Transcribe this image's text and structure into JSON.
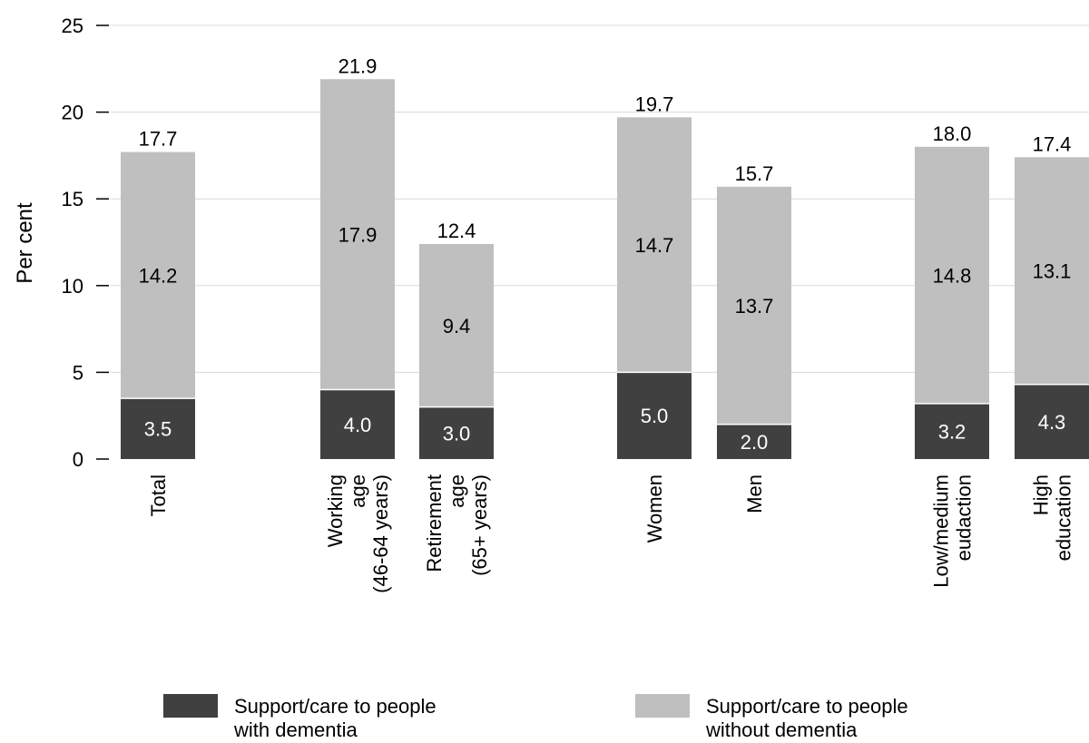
{
  "chart_data": {
    "type": "bar",
    "stacked": true,
    "ylabel": "Per cent",
    "ylim": [
      0,
      25
    ],
    "yticks": [
      0,
      5,
      10,
      15,
      20,
      25
    ],
    "grid": true,
    "legend_position": "bottom",
    "categories": [
      [
        "Total"
      ],
      [
        "Working",
        "age",
        "(46-64 years)"
      ],
      [
        "Retirement",
        "age",
        "(65+ years)"
      ],
      [
        "Women"
      ],
      [
        "Men"
      ],
      [
        "Low/medium",
        "eudaction"
      ],
      [
        "High",
        "education"
      ]
    ],
    "series": [
      {
        "name": "Support/care to people with dementia",
        "legend_lines": [
          "Support/care to people",
          "with dementia"
        ],
        "color": "#404040",
        "values": [
          3.5,
          4.0,
          3.0,
          5.0,
          2.0,
          3.2,
          4.3
        ]
      },
      {
        "name": "Support/care to people without dementia",
        "legend_lines": [
          "Support/care to people",
          "without dementia"
        ],
        "color": "#bfbfbf",
        "values": [
          14.2,
          17.9,
          9.4,
          14.7,
          13.7,
          14.8,
          13.1
        ]
      }
    ],
    "value_labels": [
      [
        "3.5",
        "4.0",
        "3.0",
        "5.0",
        "2.0",
        "3.2",
        "4.3"
      ],
      [
        "14.2",
        "17.9",
        "9.4",
        "14.7",
        "13.7",
        "14.8",
        "13.1"
      ]
    ],
    "totals": [
      "17.7",
      "21.9",
      "12.4",
      "19.7",
      "15.7",
      "18.0",
      "17.4"
    ]
  }
}
